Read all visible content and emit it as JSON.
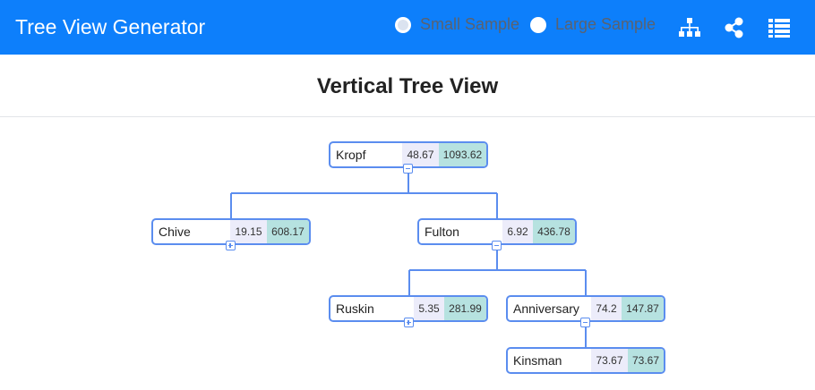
{
  "app": {
    "title": "Tree View Generator",
    "sample_options": [
      {
        "label": "Small Sample",
        "selected": true
      },
      {
        "label": "Large Sample",
        "selected": false
      }
    ],
    "toolbar_icons": [
      "sitemap-icon",
      "share-icon",
      "list-icon"
    ]
  },
  "page": {
    "title": "Vertical Tree View"
  },
  "tree": {
    "nodes": [
      {
        "name": "Kropf",
        "value1": "48.67",
        "value2": "1093.62",
        "toggle": "collapse"
      },
      {
        "name": "Chive",
        "value1": "19.15",
        "value2": "608.17",
        "toggle": "expand"
      },
      {
        "name": "Fulton",
        "value1": "6.92",
        "value2": "436.78",
        "toggle": "collapse"
      },
      {
        "name": "Ruskin",
        "value1": "5.35",
        "value2": "281.99",
        "toggle": "expand"
      },
      {
        "name": "Anniversary",
        "value1": "74.2",
        "value2": "147.87",
        "toggle": "collapse"
      },
      {
        "name": "Kinsman",
        "value1": "73.67",
        "value2": "73.67",
        "toggle": "none"
      }
    ]
  },
  "colors": {
    "header": "#0d7ffb",
    "node_border": "#5b8def",
    "value1_bg": "#ececfa",
    "value2_bg": "#b6e2e0"
  }
}
